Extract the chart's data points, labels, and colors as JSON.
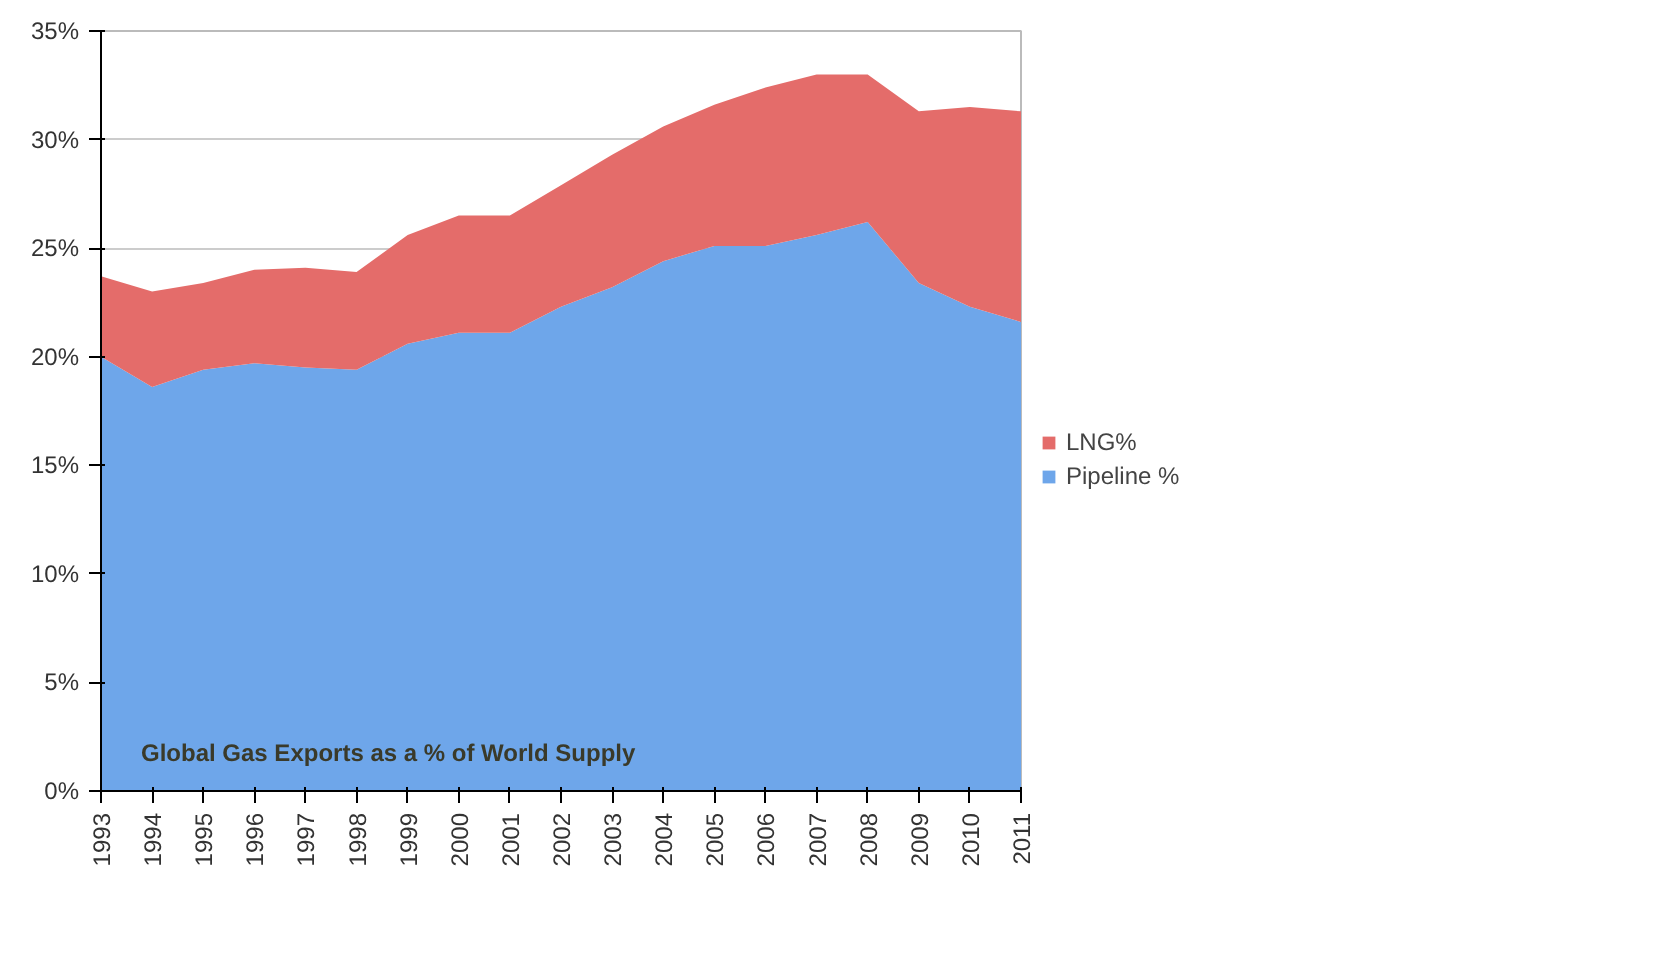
{
  "chart_data": {
    "type": "area",
    "stacked": true,
    "categories": [
      "1993",
      "1994",
      "1995",
      "1996",
      "1997",
      "1998",
      "1999",
      "2000",
      "2001",
      "2002",
      "2003",
      "2004",
      "2005",
      "2006",
      "2007",
      "2008",
      "2009",
      "2010",
      "2011"
    ],
    "series": [
      {
        "name": "Pipeline %",
        "color": "#6ea6ea",
        "values": [
          20.0,
          18.6,
          19.4,
          19.7,
          19.5,
          19.4,
          20.6,
          21.1,
          21.1,
          22.3,
          23.2,
          24.4,
          25.1,
          25.1,
          25.6,
          26.2,
          23.4,
          22.3,
          21.6
        ]
      },
      {
        "name": "LNG%",
        "color": "#e46c6a",
        "values": [
          3.7,
          4.4,
          4.0,
          4.3,
          4.6,
          4.5,
          5.0,
          5.4,
          5.4,
          5.6,
          6.1,
          6.2,
          6.5,
          7.3,
          7.4,
          6.8,
          7.9,
          9.2,
          9.7
        ]
      }
    ],
    "ylim": [
      0,
      35
    ],
    "yticks": [
      {
        "value": 0,
        "label": "0%"
      },
      {
        "value": 5,
        "label": "5%"
      },
      {
        "value": 10,
        "label": "10%"
      },
      {
        "value": 15,
        "label": "15%"
      },
      {
        "value": 20,
        "label": "20%"
      },
      {
        "value": 25,
        "label": "25%"
      },
      {
        "value": 30,
        "label": "30%"
      },
      {
        "value": 35,
        "label": "35%"
      }
    ],
    "grid": "y",
    "legend": "right",
    "annotations": [
      "Global Gas Exports as a % of World Supply"
    ]
  }
}
